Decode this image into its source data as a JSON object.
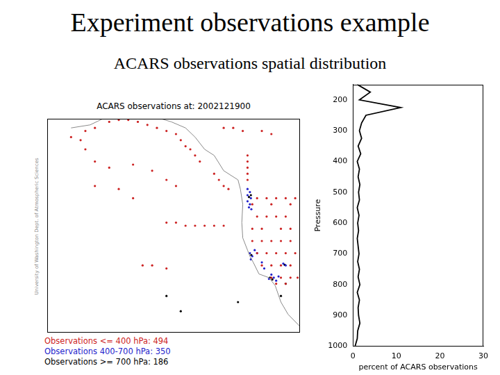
{
  "header": {
    "title": "Experiment observations example",
    "subtitle": "ACARS observations spatial distribution"
  },
  "chart_data": [
    {
      "type": "scatter",
      "title": "ACARS observations at: 2002121900",
      "annotations": [
        "University of Washington Dept. of Atmospheric Sciences"
      ],
      "xlim": [
        -165,
        -112
      ],
      "ylim": [
        25,
        60
      ],
      "tick_labels": false,
      "grid": false,
      "legend": "bottom",
      "coastline": {
        "x": [
          -160,
          -156,
          -152,
          -149,
          -146,
          -142,
          -139,
          -136,
          -134,
          -132,
          -130,
          -128,
          -125,
          -124.5,
          -124,
          -124.2,
          -124,
          -123,
          -122.5,
          -121.8,
          -120.6,
          -118.5,
          -117.2,
          -116,
          -114.5,
          -112
        ],
        "y": [
          58.5,
          59,
          60.5,
          61,
          60.8,
          60.2,
          59.5,
          58.5,
          57,
          55,
          54,
          51.5,
          50,
          48.5,
          46,
          43,
          40.5,
          38.5,
          37.5,
          36.5,
          34.6,
          34,
          32.7,
          30,
          28,
          26
        ]
      },
      "series": [
        {
          "name": "Observations <= 400 hPa: 494",
          "color": "#cc2222",
          "marker": "circle",
          "x": [
            -157,
            -155,
            -152,
            -150,
            -148,
            -146,
            -144,
            -142,
            -140,
            -138,
            -137,
            -136,
            -135,
            -134,
            -133,
            -160,
            -158,
            -157,
            -155,
            -152,
            -147,
            -143,
            -140,
            -138,
            -128,
            -126,
            -124,
            -120,
            -118,
            -130,
            -129,
            -128,
            -127,
            -123,
            -123,
            -123,
            -123,
            -123,
            -140,
            -138,
            -136,
            -134,
            -132,
            -130,
            -128,
            -121,
            -119,
            -117,
            -115,
            -113,
            -122,
            -118,
            -114,
            -121,
            -119,
            -117,
            -115,
            -122,
            -120,
            -116,
            -114,
            -122,
            -120,
            -118,
            -116,
            -114,
            -121,
            -119,
            -117,
            -115,
            -113,
            -120,
            -118,
            -116,
            -114,
            -118,
            -116,
            -114,
            -112.5,
            -117,
            -115,
            -145,
            -143,
            -140,
            -155,
            -150,
            -147
          ],
          "y": [
            58,
            58.5,
            59.5,
            59.8,
            59.8,
            59.5,
            59,
            58.5,
            58,
            57.5,
            56.5,
            55.5,
            55,
            54,
            53,
            57,
            56.5,
            55,
            53,
            52,
            52.5,
            51.5,
            50,
            49,
            58.5,
            58.5,
            58,
            58,
            57.5,
            51,
            50,
            49,
            48.5,
            54,
            53,
            52,
            51,
            50,
            43,
            43,
            42.5,
            42.5,
            42.5,
            42.5,
            42.5,
            47,
            47,
            47,
            47,
            47,
            46,
            46,
            46,
            44,
            44,
            44,
            44,
            42,
            42,
            42,
            42,
            40,
            40,
            40,
            40,
            40,
            38,
            38,
            38,
            38,
            38,
            36,
            36,
            36,
            36,
            34,
            34,
            34,
            34,
            33,
            33,
            36,
            36,
            35.5,
            49,
            48.5,
            47
          ]
        },
        {
          "name": "Observations 400-700 hPa: 350",
          "color": "#2222cc",
          "marker": "circle",
          "x": [
            -123,
            -122.5,
            -123,
            -122.3,
            -123,
            -122.5,
            -122.5,
            -122,
            -121.5,
            -122.3,
            -121,
            -118,
            -117.5,
            -118.5,
            -117,
            -116.5,
            -115.5,
            -115,
            -122.7,
            -122.2,
            -120,
            -119.5
          ],
          "y": [
            48.5,
            48,
            47.5,
            47,
            46.5,
            46,
            38,
            37.5,
            38.5,
            37,
            38,
            34.5,
            34,
            33.8,
            33.5,
            34.2,
            36.3,
            36,
            45.5,
            45.2,
            36.5,
            35.5
          ]
        },
        {
          "name": "Observations >= 700 hPa: 186",
          "color": "#000000",
          "marker": "circle",
          "x": [
            -122.3,
            -122.7,
            -122.2,
            -118.3,
            -117.8,
            -115.2,
            -115,
            -140,
            -137,
            -125,
            -116
          ],
          "y": [
            47.5,
            47.2,
            37.7,
            34,
            33.7,
            36.1,
            33,
            31,
            28.5,
            30,
            31
          ]
        }
      ]
    },
    {
      "type": "line",
      "x_label": "percent of ACARS observations",
      "y_label": "Pressure",
      "xlim": [
        0,
        30
      ],
      "xticks": [
        0,
        10,
        20,
        30
      ],
      "ylim": [
        1000,
        150
      ],
      "yticks": [
        200,
        300,
        400,
        500,
        600,
        700,
        800,
        900,
        1000
      ],
      "grid": false,
      "color": "#000000",
      "y": [
        150,
        175,
        200,
        225,
        250,
        275,
        300,
        325,
        350,
        375,
        400,
        425,
        450,
        475,
        500,
        525,
        550,
        575,
        600,
        625,
        650,
        675,
        700,
        725,
        750,
        775,
        800,
        825,
        850,
        875,
        900,
        925,
        950,
        975,
        1000
      ],
      "x": [
        1.0,
        4.0,
        1.5,
        11.0,
        3.0,
        2.0,
        1.5,
        2.0,
        1.2,
        1.8,
        1.0,
        1.5,
        1.2,
        1.6,
        1.3,
        1.5,
        1.0,
        1.4,
        1.1,
        1.3,
        1.0,
        1.2,
        1.4,
        1.1,
        1.5,
        1.2,
        1.6,
        1.0,
        1.5,
        1.2,
        1.3,
        1.6,
        1.1,
        1.0,
        0.5
      ]
    }
  ]
}
